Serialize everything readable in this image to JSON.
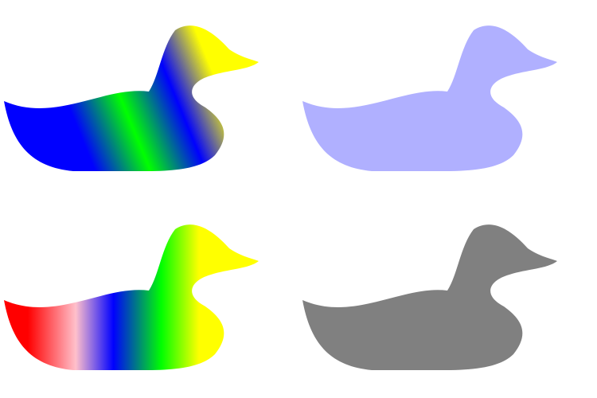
{
  "ducks": [
    {
      "id": "duck-1",
      "fill": "linear-gradient",
      "stops": [
        "#0000ff",
        "#00ff00",
        "#0000ff",
        "#ffff00"
      ]
    },
    {
      "id": "duck-2",
      "fill": "radial-gradient",
      "stops": [
        "#ffff00",
        "#006400",
        "#0000ff"
      ]
    },
    {
      "id": "duck-3",
      "fill": "linear-gradient",
      "stops": [
        "#ff0000",
        "#ffc0cb",
        "#0000ff",
        "#00ff00",
        "#ffff00"
      ]
    },
    {
      "id": "duck-4",
      "fill": "radial-gradient",
      "stops": [
        "#ffff00",
        "#006400",
        "#0000ff"
      ]
    }
  ]
}
